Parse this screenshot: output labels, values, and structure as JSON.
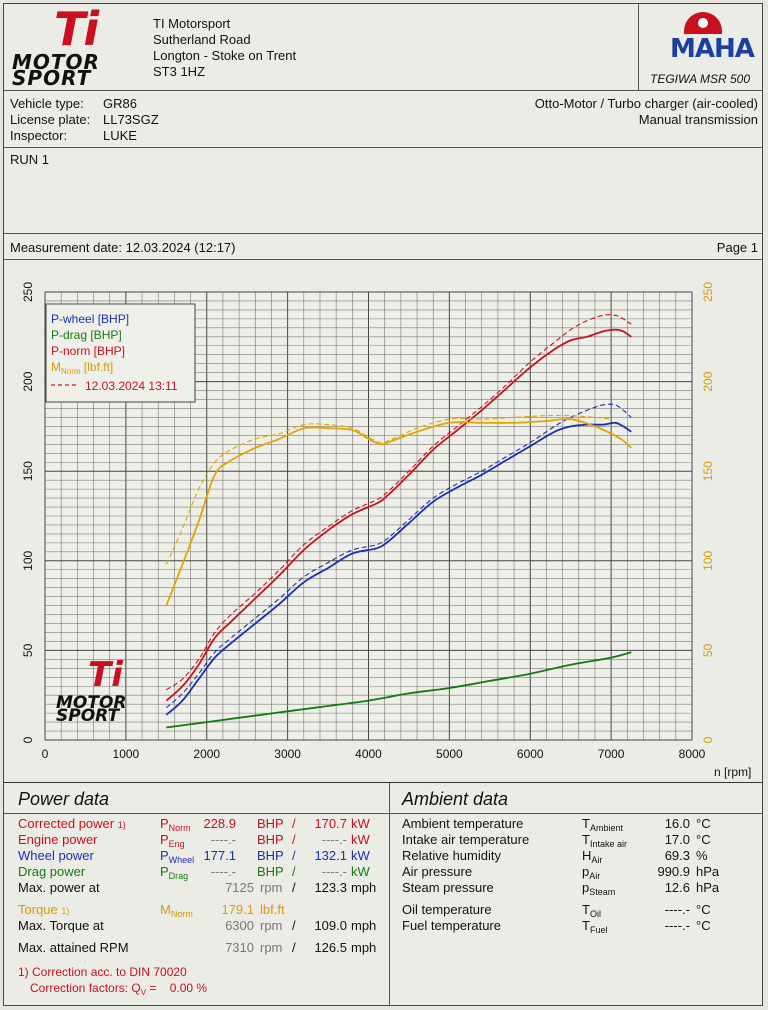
{
  "company": {
    "logo_text_top": "Ti",
    "logo_text_1": "MOTOR",
    "logo_text_2": "SPORT",
    "name": "TI Motorsport",
    "address1": "Sutherland Road",
    "address2": "Longton - Stoke on Trent",
    "postcode": "ST3 1HZ"
  },
  "maha": {
    "logo_text": "MAHA",
    "model": "TEGIWA MSR 500"
  },
  "vehicle": {
    "type_label": "Vehicle type:",
    "type_value": "GR86",
    "plate_label": "License plate:",
    "plate_value": "LL73SGZ",
    "inspector_label": "Inspector:",
    "inspector_value": "LUKE",
    "engine": "Otto-Motor / Turbo charger (air-cooled)",
    "transmission": "Manual transmission"
  },
  "run_label": "RUN 1",
  "measurement": {
    "date_text": "Measurement date: 12.03.2024 (12:17)",
    "page": "Page 1"
  },
  "chart_data": {
    "type": "line",
    "xlabel": "n [rpm]",
    "xlim": [
      0,
      8000
    ],
    "ylim_left": [
      0,
      250
    ],
    "ylim_right": [
      0,
      250
    ],
    "x_ticks": [
      "0",
      "1000",
      "2000",
      "3000",
      "4000",
      "5000",
      "6000",
      "7000",
      "8000"
    ],
    "y_ticks": [
      "0",
      "50",
      "100",
      "150",
      "200",
      "250"
    ],
    "grid": true,
    "legend_placement": "top-left",
    "legend": {
      "p_wheel": "P-wheel [BHP]",
      "p_drag": "P-drag [BHP]",
      "p_norm": "P-norm [BHP]",
      "m_norm_main": "M",
      "m_norm_sub": "Norm",
      "m_norm_unit": " [lbf.ft]",
      "compare": "12.03.2024 13:11"
    },
    "colors": {
      "p_wheel": "#1a2fb0",
      "p_drag": "#137a13",
      "p_norm": "#c8101e",
      "m_norm": "#e3a400"
    },
    "series": [
      {
        "name": "P-norm [BHP]",
        "key": "p_norm",
        "x": [
          1500,
          1700,
          1900,
          2100,
          2300,
          2600,
          2900,
          3200,
          3500,
          3800,
          4100,
          4250,
          4500,
          4800,
          5100,
          5400,
          5700,
          6000,
          6300,
          6500,
          6700,
          6900,
          7050,
          7150,
          7250
        ],
        "y": [
          22,
          30,
          42,
          57,
          66,
          79,
          92,
          106,
          117,
          126,
          132,
          137,
          148,
          162,
          173,
          184,
          196,
          208,
          218,
          223,
          225,
          228,
          229,
          228,
          225
        ]
      },
      {
        "name": "P-norm compare",
        "key": "p_norm",
        "dashed": true,
        "x": [
          1500,
          1700,
          1900,
          2100,
          2300,
          2600,
          2900,
          3200,
          3500,
          3800,
          4100,
          4250,
          4500,
          4800,
          5100,
          5400,
          5700,
          6000,
          6300,
          6500,
          6700,
          6900,
          7050,
          7150,
          7250
        ],
        "y": [
          28,
          34,
          45,
          60,
          70,
          82,
          95,
          109,
          119,
          128,
          134,
          139,
          150,
          164,
          175,
          186,
          198,
          211,
          222,
          229,
          234,
          237,
          237,
          235,
          232
        ]
      },
      {
        "name": "P-wheel [BHP]",
        "key": "p_wheel",
        "x": [
          1500,
          1700,
          1900,
          2100,
          2300,
          2600,
          2900,
          3200,
          3500,
          3800,
          4100,
          4250,
          4500,
          4800,
          5100,
          5400,
          5700,
          6000,
          6300,
          6500,
          6700,
          6900,
          7050,
          7150,
          7250
        ],
        "y": [
          14,
          22,
          34,
          46,
          54,
          65,
          76,
          88,
          96,
          104,
          107,
          111,
          121,
          133,
          141,
          148,
          156,
          164,
          172,
          175,
          176,
          176,
          177,
          175,
          172
        ]
      },
      {
        "name": "P-wheel compare",
        "key": "p_wheel",
        "dashed": true,
        "x": [
          1500,
          1700,
          1900,
          2100,
          2300,
          2600,
          2900,
          3200,
          3500,
          3800,
          4100,
          4250,
          4500,
          4800,
          5100,
          5400,
          5700,
          6000,
          6300,
          6500,
          6700,
          6900,
          7050,
          7150,
          7250
        ],
        "y": [
          18,
          26,
          37,
          49,
          57,
          68,
          79,
          91,
          99,
          106,
          109,
          113,
          123,
          135,
          143,
          150,
          158,
          166,
          175,
          180,
          184,
          187,
          187,
          184,
          180
        ]
      },
      {
        "name": "P-drag [BHP]",
        "key": "p_drag",
        "x": [
          1500,
          2000,
          2500,
          3000,
          3500,
          4000,
          4500,
          5000,
          5500,
          6000,
          6500,
          7000,
          7250
        ],
        "y": [
          7,
          10,
          13,
          16,
          19,
          22,
          26,
          29,
          33,
          37,
          42,
          46,
          49
        ]
      },
      {
        "name": "MNorm [lbf.ft]",
        "key": "m_norm",
        "x": [
          1500,
          1700,
          1900,
          2100,
          2300,
          2600,
          2900,
          3200,
          3500,
          3800,
          4000,
          4150,
          4300,
          4600,
          5000,
          5400,
          5800,
          6200,
          6500,
          6800,
          7000,
          7150,
          7250
        ],
        "y": [
          75,
          98,
          122,
          148,
          156,
          163,
          168,
          174,
          174,
          173,
          168,
          165,
          167,
          172,
          177,
          177,
          177,
          178,
          179,
          175,
          171,
          167,
          163
        ]
      },
      {
        "name": "MNorm compare",
        "key": "m_norm",
        "dashed": true,
        "x": [
          1500,
          1700,
          1900,
          2100,
          2300,
          2600,
          2900,
          3200,
          3500,
          3800,
          4000,
          4150,
          4300,
          4600,
          5000,
          5400,
          5800,
          6200,
          6500,
          6800,
          7000
        ],
        "y": [
          98,
          118,
          140,
          155,
          162,
          168,
          171,
          176,
          176,
          174,
          169,
          166,
          168,
          174,
          179,
          179,
          180,
          181,
          181,
          180,
          179
        ]
      }
    ]
  },
  "power": {
    "title": "Power data",
    "corrected_label": "Corrected power",
    "corrected_note": "1)",
    "corrected_sym": "P",
    "corrected_sub": "Norm",
    "corrected_v1": "228.9",
    "corrected_u1": "BHP",
    "corrected_sep": "/",
    "corrected_v2": "170.7",
    "corrected_u2": "kW",
    "engine_label": "Engine power",
    "engine_sym": "P",
    "engine_sub": "Eng",
    "engine_v1": "----.-",
    "engine_u1": "BHP",
    "engine_sep": "/",
    "engine_v2": "----.-",
    "engine_u2": "kW",
    "wheel_label": "Wheel power",
    "wheel_sym": "P",
    "wheel_sub": "Wheel",
    "wheel_v1": "177.1",
    "wheel_u1": "BHP",
    "wheel_sep": "/",
    "wheel_v2": "132.1",
    "wheel_u2": "kW",
    "drag_label": "Drag power",
    "drag_sym": "P",
    "drag_sub": "Drag",
    "drag_v1": "----.-",
    "drag_u1": "BHP",
    "drag_sep": "/",
    "drag_v2": "----.-",
    "drag_u2": "kW",
    "maxpower_label": "Max. power at",
    "maxpower_rpm": "7125",
    "maxpower_unit": "rpm",
    "maxpower_sep": "/",
    "maxpower_speed": "123.3",
    "maxpower_speed_unit": "mph",
    "torque_label": "Torque",
    "torque_note": "1)",
    "torque_sym": "M",
    "torque_sub": "Norm",
    "torque_value": "179.1",
    "torque_unit": "lbf.ft",
    "maxtorque_label": "Max. Torque at",
    "maxtorque_rpm": "6300",
    "maxtorque_unit": "rpm",
    "maxtorque_sep": "/",
    "maxtorque_speed": "109.0",
    "maxtorque_speed_unit": "mph",
    "maxrpm_label": "Max. attained RPM",
    "maxrpm_rpm": "7310",
    "maxrpm_unit": "rpm",
    "maxrpm_sep": "/",
    "maxrpm_speed": "126.5",
    "maxrpm_speed_unit": "mph",
    "footnote1": "1) Correction acc. to DIN 70020",
    "footnote2_a": "Correction factors: Q",
    "footnote2_sub": "V",
    "footnote2_b": " =    0.00 %"
  },
  "ambient": {
    "title": "Ambient data",
    "rows": [
      {
        "label": "Ambient temperature",
        "sym": "T",
        "sub": "Ambient",
        "value": "16.0",
        "unit": "°C"
      },
      {
        "label": "Intake air temperature",
        "sym": "T",
        "sub": "Intake air",
        "value": "17.0",
        "unit": "°C"
      },
      {
        "label": "Relative humidity",
        "sym": "H",
        "sub": "Air",
        "value": "69.3",
        "unit": "%"
      },
      {
        "label": "Air pressure",
        "sym": "p",
        "sub": "Air",
        "value": "990.9",
        "unit": "hPa"
      },
      {
        "label": "Steam pressure",
        "sym": "p",
        "sub": "Steam",
        "value": "12.6",
        "unit": "hPa"
      },
      {
        "label": "Oil temperature",
        "sym": "T",
        "sub": "Oil",
        "value": "----.-",
        "unit": "°C"
      },
      {
        "label": "Fuel temperature",
        "sym": "T",
        "sub": "Fuel",
        "value": "----.-",
        "unit": "°C"
      }
    ]
  }
}
